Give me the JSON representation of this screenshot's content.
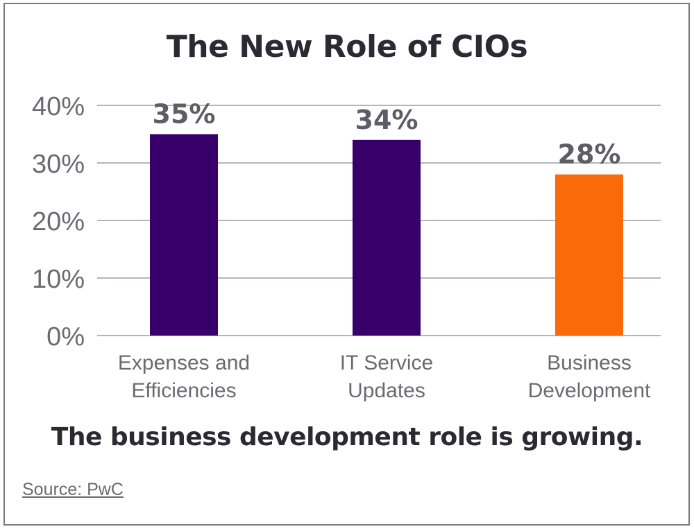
{
  "chart_data": {
    "type": "bar",
    "title": "The New Role of CIOs",
    "categories": [
      [
        "Expenses and",
        "Efficiencies"
      ],
      [
        "IT Service",
        "Updates"
      ],
      [
        "Business",
        "Development"
      ]
    ],
    "values": [
      35,
      34,
      28
    ],
    "data_labels": [
      "35%",
      "34%",
      "28%"
    ],
    "colors": [
      "#37006b",
      "#37006b",
      "#f86b08"
    ],
    "ylim": [
      0,
      40
    ],
    "yticks": [
      0,
      10,
      20,
      30,
      40
    ],
    "ytick_labels": [
      "0%",
      "10%",
      "20%",
      "30%",
      "40%"
    ],
    "grid": true,
    "xlabel": "",
    "ylabel": ""
  },
  "subtitle": "The business development role is growing.",
  "source": "Source: PwC"
}
